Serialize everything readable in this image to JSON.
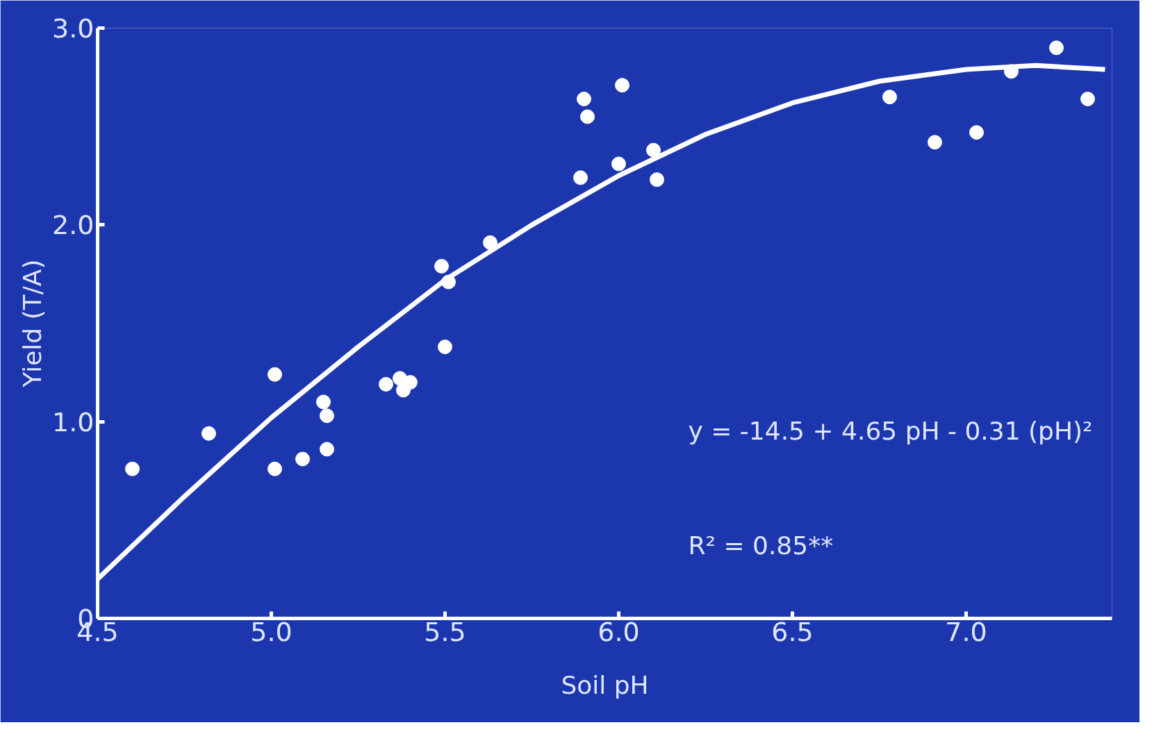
{
  "chart_data": {
    "type": "scatter",
    "xlabel": "Soil pH",
    "ylabel": "Yield (T/A)",
    "xlim": [
      4.5,
      7.42
    ],
    "ylim": [
      0,
      3.0
    ],
    "xticks": [
      4.5,
      {
        "value": 5.0,
        "label": "5.0"
      },
      5.5,
      {
        "value": 6.0,
        "label": "6.0"
      },
      6.5,
      {
        "value": 7.0,
        "label": "7.0"
      }
    ],
    "yticks": [
      0,
      {
        "value": 1.0,
        "label": "1.0"
      },
      {
        "value": 2.0,
        "label": "2.0"
      },
      {
        "value": 3.0,
        "label": "3.0"
      }
    ],
    "grid": false,
    "marker": "circle",
    "series": [
      {
        "color": "#ffffff",
        "x": [
          4.6,
          4.82,
          5.01,
          5.01,
          5.09,
          5.15,
          5.16,
          5.16,
          5.33,
          5.37,
          5.38,
          5.4,
          5.49,
          5.51,
          5.5,
          5.63,
          5.89,
          5.9,
          5.91,
          6.0,
          6.01,
          6.1,
          6.11,
          6.78,
          6.91,
          7.03,
          7.13,
          7.26,
          7.35
        ],
        "values": [
          0.76,
          0.94,
          1.24,
          0.76,
          0.81,
          1.1,
          1.03,
          0.86,
          1.19,
          1.22,
          1.16,
          1.2,
          1.79,
          1.71,
          1.38,
          1.91,
          2.24,
          2.64,
          2.55,
          2.31,
          2.71,
          2.38,
          2.23,
          2.65,
          2.42,
          2.47,
          2.78,
          2.9,
          2.64
        ]
      },
      {
        "type": "line",
        "marker": "none",
        "color": "#ffffff",
        "x": [
          4.5,
          4.75,
          5.0,
          5.25,
          5.5,
          5.75,
          6.0,
          6.25,
          6.5,
          6.75,
          7.0,
          7.2,
          7.4
        ],
        "values": [
          0.2,
          0.62,
          1.02,
          1.38,
          1.72,
          2.0,
          2.25,
          2.46,
          2.62,
          2.73,
          2.79,
          2.81,
          2.79
        ]
      }
    ],
    "annotations": [
      "y = -14.5 + 4.65 pH - 0.31 (pH)²",
      "R² = 0.85**"
    ]
  }
}
